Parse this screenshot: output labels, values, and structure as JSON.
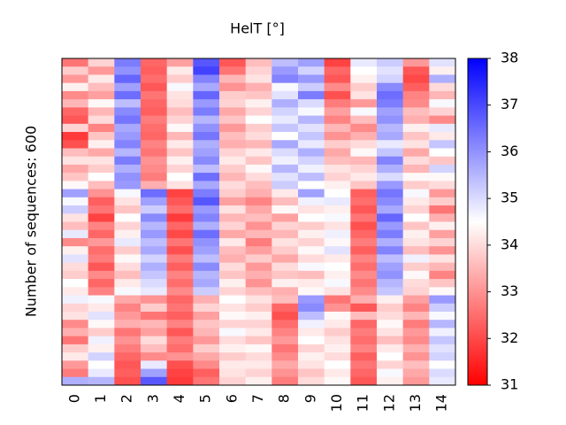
{
  "chart_data": {
    "type": "heatmap",
    "title": "HelT [°]",
    "y_label": "Number of sequences: 600",
    "categories": [
      "0",
      "1",
      "2",
      "3",
      "4",
      "5",
      "6",
      "7",
      "8",
      "9",
      "10",
      "11",
      "12",
      "13",
      "14"
    ],
    "values": [
      [
        32.6,
        33.9,
        36.3,
        32.4,
        33.2,
        36.8,
        32.2,
        33.6,
        35.4,
        35.8,
        31.9,
        34.8,
        35.2,
        33.1,
        34.9
      ],
      [
        33.8,
        33.1,
        36.0,
        32.3,
        34.2,
        37.1,
        32.6,
        33.9,
        35.9,
        35.1,
        32.4,
        34.5,
        34.9,
        32.2,
        34.3
      ],
      [
        33.1,
        34.2,
        36.6,
        32.5,
        33.8,
        36.2,
        33.5,
        34.1,
        36.2,
        35.9,
        32.2,
        34.3,
        35.1,
        32.0,
        35.6
      ],
      [
        34.3,
        33.6,
        35.8,
        32.2,
        34.6,
        35.7,
        33.0,
        33.4,
        34.6,
        35.2,
        32.9,
        33.8,
        36.1,
        32.3,
        34.0
      ],
      [
        32.9,
        33.2,
        36.5,
        32.6,
        34.1,
        36.6,
        33.8,
        33.7,
        34.9,
        36.3,
        32.1,
        34.1,
        36.5,
        32.8,
        33.5
      ],
      [
        33.5,
        34.4,
        35.4,
        32.4,
        34.0,
        35.9,
        33.9,
        34.3,
        35.6,
        35.0,
        32.7,
        33.1,
        36.3,
        32.9,
        34.6
      ],
      [
        32.4,
        33.5,
        36.1,
        32.3,
        33.6,
        36.3,
        33.3,
        33.9,
        35.1,
        34.6,
        33.2,
        34.6,
        35.8,
        33.6,
        33.9
      ],
      [
        32.2,
        34.0,
        36.4,
        32.7,
        33.9,
        35.5,
        33.7,
        34.5,
        34.8,
        35.5,
        32.8,
        33.6,
        36.0,
        33.4,
        32.9
      ],
      [
        33.9,
        32.8,
        35.7,
        32.5,
        34.4,
        36.0,
        33.1,
        33.8,
        35.3,
        34.9,
        33.5,
        32.9,
        35.5,
        34.3,
        34.8
      ],
      [
        31.8,
        33.7,
        35.9,
        32.4,
        33.5,
        36.4,
        33.6,
        34.0,
        34.5,
        35.3,
        33.0,
        33.4,
        35.7,
        33.7,
        34.2
      ],
      [
        32.1,
        34.3,
        36.2,
        32.8,
        34.2,
        35.6,
        33.4,
        33.5,
        35.7,
        34.8,
        33.8,
        34.0,
        34.8,
        34.1,
        35.3
      ],
      [
        33.6,
        33.3,
        35.5,
        32.6,
        33.7,
        35.8,
        33.9,
        34.2,
        35.0,
        35.6,
        33.3,
        34.4,
        35.3,
        33.3,
        34.5
      ],
      [
        34.1,
        34.1,
        36.3,
        33.0,
        34.3,
        36.1,
        34.2,
        33.7,
        34.7,
        35.1,
        33.6,
        33.5,
        36.2,
        34.0,
        33.7
      ],
      [
        33.3,
        33.8,
        35.6,
        32.9,
        33.9,
        35.4,
        33.8,
        34.4,
        35.5,
        34.7,
        34.1,
        33.9,
        35.6,
        33.5,
        35.1
      ],
      [
        33.7,
        34.5,
        36.0,
        32.7,
        34.5,
        36.5,
        33.5,
        34.0,
        34.9,
        35.4,
        33.9,
        34.2,
        35.0,
        34.4,
        34.4
      ],
      [
        34.4,
        33.6,
        35.9,
        33.4,
        34.1,
        35.7,
        34.0,
        33.6,
        35.2,
        34.5,
        34.3,
        33.7,
        35.9,
        33.8,
        34.0
      ],
      [
        35.8,
        33.0,
        34.6,
        36.5,
        31.9,
        36.3,
        33.8,
        33.4,
        34.2,
        35.8,
        34.5,
        32.3,
        36.4,
        34.6,
        33.1
      ],
      [
        34.6,
        32.3,
        34.1,
        35.8,
        32.2,
        36.8,
        33.2,
        32.8,
        33.6,
        34.7,
        34.8,
        32.5,
        36.1,
        34.2,
        33.8
      ],
      [
        35.2,
        32.6,
        33.7,
        35.2,
        32.5,
        35.9,
        34.1,
        33.3,
        34.4,
        34.1,
        34.3,
        32.2,
        35.7,
        33.9,
        32.6
      ],
      [
        34.1,
        31.9,
        34.5,
        36.1,
        31.8,
        36.2,
        33.5,
        33.6,
        33.2,
        34.5,
        34.6,
        32.6,
        36.6,
        34.5,
        33.4
      ],
      [
        33.6,
        32.8,
        33.9,
        35.5,
        32.4,
        35.6,
        33.9,
        33.0,
        33.9,
        33.8,
        34.1,
        32.1,
        35.9,
        33.7,
        34.3
      ],
      [
        34.8,
        32.4,
        34.3,
        35.9,
        32.0,
        36.5,
        33.3,
        33.5,
        33.5,
        34.3,
        34.7,
        32.4,
        36.3,
        34.3,
        33.2
      ],
      [
        32.9,
        33.1,
        34.8,
        35.4,
        32.6,
        36.0,
        34.2,
        32.7,
        34.1,
        33.9,
        34.4,
        32.7,
        35.6,
        34.1,
        33.9
      ],
      [
        34.3,
        32.5,
        33.8,
        35.7,
        32.1,
        35.8,
        33.6,
        33.2,
        33.8,
        34.4,
        34.9,
        32.3,
        36.2,
        33.6,
        33.0
      ],
      [
        34.9,
        32.7,
        34.4,
        35.1,
        32.7,
        35.4,
        33.4,
        33.8,
        33.3,
        34.0,
        34.2,
        32.8,
        35.4,
        34.7,
        34.1
      ],
      [
        34.0,
        32.2,
        34.0,
        35.6,
        32.3,
        36.1,
        34.0,
        33.1,
        34.0,
        34.6,
        34.5,
        32.5,
        35.8,
        33.8,
        33.5
      ],
      [
        33.8,
        32.9,
        33.6,
        35.3,
        32.8,
        35.5,
        33.7,
        33.4,
        33.7,
        33.6,
        34.3,
        32.9,
        36.0,
        34.4,
        32.8
      ],
      [
        34.5,
        32.4,
        34.2,
        35.0,
        32.5,
        35.7,
        34.3,
        33.0,
        34.3,
        34.2,
        34.6,
        32.6,
        35.5,
        34.0,
        33.7
      ],
      [
        34.2,
        32.8,
        34.6,
        34.8,
        32.9,
        35.2,
        33.9,
        33.6,
        33.4,
        34.4,
        34.1,
        32.9,
        35.3,
        33.9,
        34.4
      ],
      [
        34.7,
        34.6,
        33.3,
        33.0,
        32.4,
        33.4,
        34.5,
        34.1,
        33.6,
        35.9,
        32.6,
        33.4,
        34.3,
        33.2,
        35.9
      ],
      [
        33.9,
        34.2,
        32.8,
        33.8,
        32.6,
        33.9,
        34.1,
        33.8,
        32.4,
        36.1,
        33.0,
        32.2,
        33.8,
        32.8,
        35.2
      ],
      [
        34.1,
        34.9,
        33.1,
        32.6,
        32.3,
        33.2,
        34.4,
        34.3,
        32.1,
        35.4,
        34.4,
        33.6,
        34.0,
        33.5,
        34.6
      ],
      [
        32.9,
        34.4,
        33.4,
        33.5,
        32.8,
        33.7,
        33.9,
        33.9,
        32.5,
        34.7,
        34.2,
        32.4,
        34.4,
        32.7,
        35.5
      ],
      [
        33.4,
        33.8,
        32.6,
        33.2,
        32.2,
        33.5,
        34.6,
        34.2,
        32.8,
        34.2,
        33.8,
        32.7,
        34.1,
        33.1,
        34.7
      ],
      [
        32.6,
        34.7,
        33.0,
        34.0,
        32.7,
        33.1,
        34.0,
        33.7,
        33.1,
        34.5,
        34.1,
        32.5,
        33.6,
        32.9,
        35.3
      ],
      [
        33.8,
        34.3,
        32.7,
        33.6,
        32.5,
        33.8,
        34.3,
        34.4,
        32.6,
        33.9,
        34.3,
        32.8,
        34.2,
        33.4,
        34.9
      ],
      [
        34.2,
        35.1,
        32.4,
        32.9,
        33.0,
        33.3,
        33.8,
        34.0,
        32.9,
        34.3,
        34.0,
        32.3,
        34.5,
        33.0,
        35.1
      ],
      [
        33.1,
        34.5,
        32.2,
        34.8,
        32.1,
        32.9,
        34.2,
        34.2,
        33.3,
        34.1,
        34.5,
        32.6,
        33.9,
        33.6,
        34.5
      ],
      [
        32.7,
        34.8,
        32.3,
        35.8,
        31.9,
        32.3,
        34.1,
        33.9,
        33.0,
        33.7,
        34.2,
        32.4,
        34.6,
        33.3,
        35.0
      ],
      [
        35.6,
        35.5,
        32.1,
        36.8,
        31.8,
        32.6,
        33.9,
        34.3,
        32.7,
        34.0,
        34.4,
        32.2,
        34.3,
        33.1,
        34.8
      ]
    ],
    "zlim": [
      31,
      38
    ],
    "zticks": [
      31,
      32,
      33,
      34,
      35,
      36,
      37,
      38
    ],
    "colors": [
      "#ff0000",
      "#ffffff",
      "#0000ff"
    ]
  }
}
